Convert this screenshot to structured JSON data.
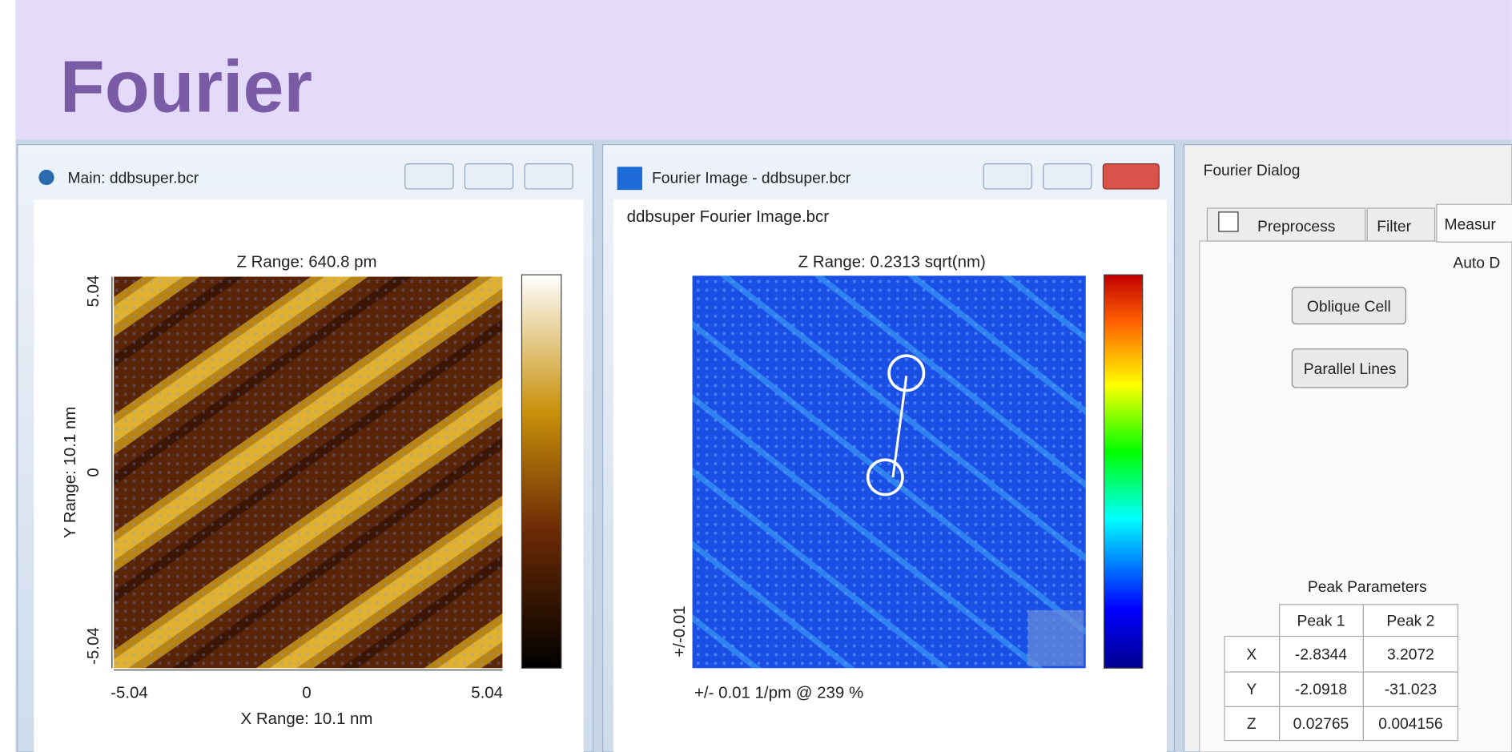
{
  "slide": {
    "title": "Fourier"
  },
  "main_window": {
    "title": "Main: ddbsuper.bcr",
    "z_range": "Z Range:  640.8 pm",
    "y_ticks": [
      "5.04",
      "0",
      "-5.04"
    ],
    "y_label": "Y Range: 10.1 nm",
    "x_ticks": [
      "-5.04",
      "0",
      "5.04"
    ],
    "x_label": "X Range:  10.1 nm"
  },
  "fourier_window": {
    "title": "Fourier Image - ddbsuper.bcr",
    "file": "ddbsuper Fourier Image.bcr",
    "z_range": "Z Range: 0.2313 sqrt(nm)",
    "scale_label": "+/-0.01",
    "footer": "+/- 0.01 1/pm @ 239 %"
  },
  "dialog": {
    "title": "Fourier Dialog",
    "tabs": [
      "Preprocess",
      "Filter",
      "Measur"
    ],
    "auto": "Auto D",
    "buttons": [
      "Oblique Cell",
      "Parallel Lines"
    ],
    "peak_title": "Peak Parameters",
    "table": {
      "header": [
        "Peak 1",
        "Peak 2"
      ],
      "rows": [
        [
          "X",
          "-2.8344",
          "3.2072"
        ],
        [
          "Y",
          "-2.0918",
          "-31.023"
        ],
        [
          "Z",
          "0.02765",
          "0.004156"
        ]
      ]
    }
  }
}
